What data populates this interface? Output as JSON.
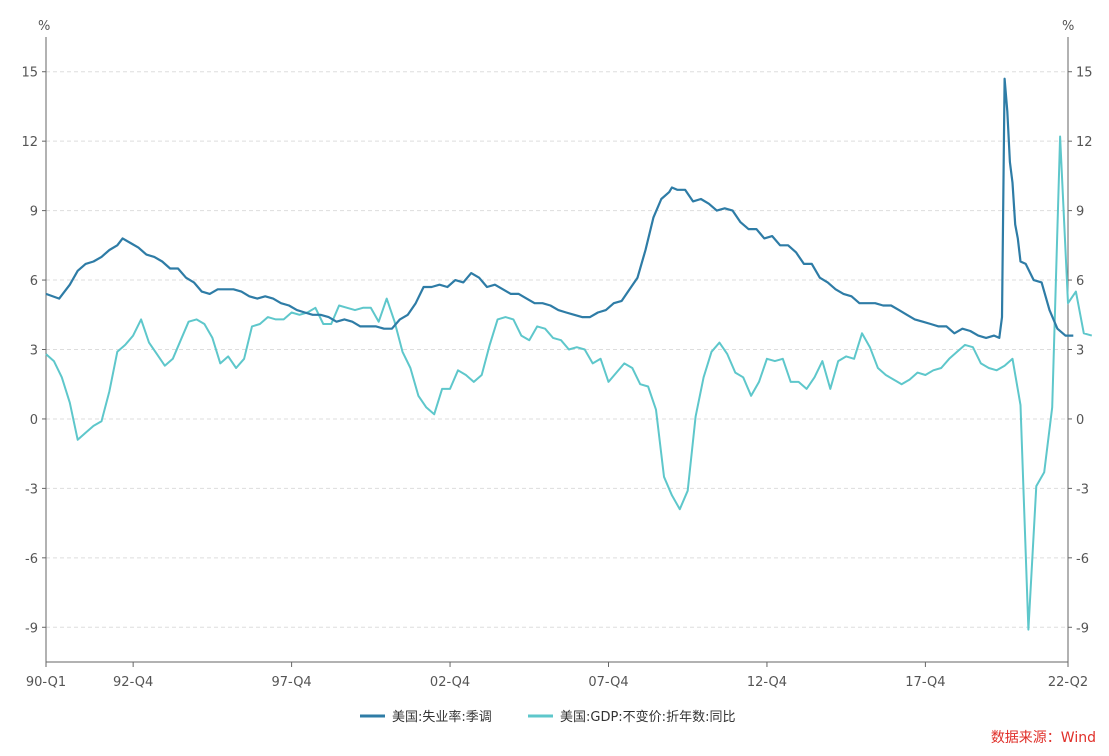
{
  "chart_data": {
    "type": "line",
    "left_unit": "%",
    "right_unit": "%",
    "ylim": [
      -10.5,
      16.5
    ],
    "yticks": [
      15,
      12,
      9,
      6,
      3,
      0,
      -3,
      -6,
      -9
    ],
    "x_start_year": 1990,
    "x_end": "2022-Q2",
    "xtick_labels": [
      "90-Q1",
      "92-Q4",
      "97-Q4",
      "02-Q4",
      "07-Q4",
      "12-Q4",
      "17-Q4",
      "22-Q2"
    ],
    "xtick_positions": [
      "1990-Q1",
      "1992-Q4",
      "1997-Q4",
      "2002-Q4",
      "2007-Q4",
      "2012-Q4",
      "2017-Q4",
      "2022-Q2"
    ],
    "grid": true,
    "legend_position": "bottom",
    "source_text": "数据来源：Wind",
    "colors": {
      "unemployment": "#2e7ca6",
      "gdp": "#5ec7cb",
      "source": "#e0302a",
      "grid": "#dddddd"
    },
    "series": [
      {
        "name": "美国:失业率:季调",
        "color": "#2e7ca6",
        "points": [
          [
            "1990-01",
            5.4
          ],
          [
            "1990-06",
            5.2
          ],
          [
            "1990-10",
            5.8
          ],
          [
            "1991-01",
            6.4
          ],
          [
            "1991-04",
            6.7
          ],
          [
            "1991-07",
            6.8
          ],
          [
            "1991-10",
            7.0
          ],
          [
            "1992-01",
            7.3
          ],
          [
            "1992-04",
            7.5
          ],
          [
            "1992-06",
            7.8
          ],
          [
            "1992-09",
            7.6
          ],
          [
            "1992-12",
            7.4
          ],
          [
            "1993-03",
            7.1
          ],
          [
            "1993-06",
            7.0
          ],
          [
            "1993-09",
            6.8
          ],
          [
            "1993-12",
            6.5
          ],
          [
            "1994-03",
            6.5
          ],
          [
            "1994-06",
            6.1
          ],
          [
            "1994-09",
            5.9
          ],
          [
            "1994-12",
            5.5
          ],
          [
            "1995-03",
            5.4
          ],
          [
            "1995-06",
            5.6
          ],
          [
            "1995-09",
            5.6
          ],
          [
            "1995-12",
            5.6
          ],
          [
            "1996-03",
            5.5
          ],
          [
            "1996-06",
            5.3
          ],
          [
            "1996-09",
            5.2
          ],
          [
            "1996-12",
            5.3
          ],
          [
            "1997-03",
            5.2
          ],
          [
            "1997-06",
            5.0
          ],
          [
            "1997-09",
            4.9
          ],
          [
            "1997-12",
            4.7
          ],
          [
            "1998-03",
            4.6
          ],
          [
            "1998-06",
            4.5
          ],
          [
            "1998-09",
            4.5
          ],
          [
            "1998-12",
            4.4
          ],
          [
            "1999-03",
            4.2
          ],
          [
            "1999-06",
            4.3
          ],
          [
            "1999-09",
            4.2
          ],
          [
            "1999-12",
            4.0
          ],
          [
            "2000-03",
            4.0
          ],
          [
            "2000-06",
            4.0
          ],
          [
            "2000-09",
            3.9
          ],
          [
            "2000-12",
            3.9
          ],
          [
            "2001-03",
            4.3
          ],
          [
            "2001-06",
            4.5
          ],
          [
            "2001-09",
            5.0
          ],
          [
            "2001-12",
            5.7
          ],
          [
            "2002-03",
            5.7
          ],
          [
            "2002-06",
            5.8
          ],
          [
            "2002-09",
            5.7
          ],
          [
            "2002-12",
            6.0
          ],
          [
            "2003-03",
            5.9
          ],
          [
            "2003-06",
            6.3
          ],
          [
            "2003-09",
            6.1
          ],
          [
            "2003-12",
            5.7
          ],
          [
            "2004-03",
            5.8
          ],
          [
            "2004-06",
            5.6
          ],
          [
            "2004-09",
            5.4
          ],
          [
            "2004-12",
            5.4
          ],
          [
            "2005-03",
            5.2
          ],
          [
            "2005-06",
            5.0
          ],
          [
            "2005-09",
            5.0
          ],
          [
            "2005-12",
            4.9
          ],
          [
            "2006-03",
            4.7
          ],
          [
            "2006-06",
            4.6
          ],
          [
            "2006-09",
            4.5
          ],
          [
            "2006-12",
            4.4
          ],
          [
            "2007-03",
            4.4
          ],
          [
            "2007-06",
            4.6
          ],
          [
            "2007-09",
            4.7
          ],
          [
            "2007-12",
            5.0
          ],
          [
            "2008-03",
            5.1
          ],
          [
            "2008-06",
            5.6
          ],
          [
            "2008-09",
            6.1
          ],
          [
            "2008-12",
            7.3
          ],
          [
            "2009-03",
            8.7
          ],
          [
            "2009-06",
            9.5
          ],
          [
            "2009-09",
            9.8
          ],
          [
            "2009-10",
            10.0
          ],
          [
            "2009-12",
            9.9
          ],
          [
            "2010-03",
            9.9
          ],
          [
            "2010-06",
            9.4
          ],
          [
            "2010-09",
            9.5
          ],
          [
            "2010-12",
            9.3
          ],
          [
            "2011-03",
            9.0
          ],
          [
            "2011-06",
            9.1
          ],
          [
            "2011-09",
            9.0
          ],
          [
            "2011-12",
            8.5
          ],
          [
            "2012-03",
            8.2
          ],
          [
            "2012-06",
            8.2
          ],
          [
            "2012-09",
            7.8
          ],
          [
            "2012-12",
            7.9
          ],
          [
            "2013-03",
            7.5
          ],
          [
            "2013-06",
            7.5
          ],
          [
            "2013-09",
            7.2
          ],
          [
            "2013-12",
            6.7
          ],
          [
            "2014-03",
            6.7
          ],
          [
            "2014-06",
            6.1
          ],
          [
            "2014-09",
            5.9
          ],
          [
            "2014-12",
            5.6
          ],
          [
            "2015-03",
            5.4
          ],
          [
            "2015-06",
            5.3
          ],
          [
            "2015-09",
            5.0
          ],
          [
            "2015-12",
            5.0
          ],
          [
            "2016-03",
            5.0
          ],
          [
            "2016-06",
            4.9
          ],
          [
            "2016-09",
            4.9
          ],
          [
            "2016-12",
            4.7
          ],
          [
            "2017-03",
            4.5
          ],
          [
            "2017-06",
            4.3
          ],
          [
            "2017-09",
            4.2
          ],
          [
            "2017-12",
            4.1
          ],
          [
            "2018-03",
            4.0
          ],
          [
            "2018-06",
            4.0
          ],
          [
            "2018-09",
            3.7
          ],
          [
            "2018-12",
            3.9
          ],
          [
            "2019-03",
            3.8
          ],
          [
            "2019-06",
            3.6
          ],
          [
            "2019-09",
            3.5
          ],
          [
            "2019-12",
            3.6
          ],
          [
            "2020-02",
            3.5
          ],
          [
            "2020-03",
            4.4
          ],
          [
            "2020-04",
            14.7
          ],
          [
            "2020-05",
            13.3
          ],
          [
            "2020-06",
            11.1
          ],
          [
            "2020-07",
            10.2
          ],
          [
            "2020-08",
            8.4
          ],
          [
            "2020-09",
            7.8
          ],
          [
            "2020-10",
            6.8
          ],
          [
            "2020-12",
            6.7
          ],
          [
            "2021-03",
            6.0
          ],
          [
            "2021-06",
            5.9
          ],
          [
            "2021-09",
            4.7
          ],
          [
            "2021-12",
            3.9
          ],
          [
            "2022-03",
            3.6
          ],
          [
            "2022-06",
            3.6
          ]
        ]
      },
      {
        "name": "美国:GDP:不变价:折年数:同比",
        "color": "#5ec7cb",
        "points": [
          [
            "1990-Q1",
            2.8
          ],
          [
            "1990-Q2",
            2.5
          ],
          [
            "1990-Q3",
            1.8
          ],
          [
            "1990-Q4",
            0.7
          ],
          [
            "1991-Q1",
            -0.9
          ],
          [
            "1991-Q2",
            -0.6
          ],
          [
            "1991-Q3",
            -0.3
          ],
          [
            "1991-Q4",
            -0.1
          ],
          [
            "1992-Q1",
            1.2
          ],
          [
            "1992-Q2",
            2.9
          ],
          [
            "1992-Q3",
            3.2
          ],
          [
            "1992-Q4",
            3.6
          ],
          [
            "1993-Q1",
            4.3
          ],
          [
            "1993-Q2",
            3.3
          ],
          [
            "1993-Q3",
            2.8
          ],
          [
            "1993-Q4",
            2.3
          ],
          [
            "1994-Q1",
            2.6
          ],
          [
            "1994-Q2",
            3.4
          ],
          [
            "1994-Q3",
            4.2
          ],
          [
            "1994-Q4",
            4.3
          ],
          [
            "1995-Q1",
            4.1
          ],
          [
            "1995-Q2",
            3.5
          ],
          [
            "1995-Q3",
            2.4
          ],
          [
            "1995-Q4",
            2.7
          ],
          [
            "1996-Q1",
            2.2
          ],
          [
            "1996-Q2",
            2.6
          ],
          [
            "1996-Q3",
            4.0
          ],
          [
            "1996-Q4",
            4.1
          ],
          [
            "1997-Q1",
            4.4
          ],
          [
            "1997-Q2",
            4.3
          ],
          [
            "1997-Q3",
            4.3
          ],
          [
            "1997-Q4",
            4.6
          ],
          [
            "1998-Q1",
            4.5
          ],
          [
            "1998-Q2",
            4.6
          ],
          [
            "1998-Q3",
            4.8
          ],
          [
            "1998-Q4",
            4.1
          ],
          [
            "1999-Q1",
            4.1
          ],
          [
            "1999-Q2",
            4.9
          ],
          [
            "1999-Q3",
            4.8
          ],
          [
            "1999-Q4",
            4.7
          ],
          [
            "2000-Q1",
            4.8
          ],
          [
            "2000-Q2",
            4.8
          ],
          [
            "2000-Q3",
            4.2
          ],
          [
            "2000-Q4",
            5.2
          ],
          [
            "2001-Q1",
            4.2
          ],
          [
            "2001-Q2",
            2.9
          ],
          [
            "2001-Q3",
            2.2
          ],
          [
            "2001-Q4",
            1.0
          ],
          [
            "2002-Q1",
            0.5
          ],
          [
            "2002-Q2",
            0.2
          ],
          [
            "2002-Q3",
            1.3
          ],
          [
            "2002-Q4",
            1.3
          ],
          [
            "2003-Q1",
            2.1
          ],
          [
            "2003-Q2",
            1.9
          ],
          [
            "2003-Q3",
            1.6
          ],
          [
            "2003-Q4",
            1.9
          ],
          [
            "2004-Q1",
            3.2
          ],
          [
            "2004-Q2",
            4.3
          ],
          [
            "2004-Q3",
            4.4
          ],
          [
            "2004-Q4",
            4.3
          ],
          [
            "2005-Q1",
            3.6
          ],
          [
            "2005-Q2",
            3.4
          ],
          [
            "2005-Q3",
            4.0
          ],
          [
            "2005-Q4",
            3.9
          ],
          [
            "2006-Q1",
            3.5
          ],
          [
            "2006-Q2",
            3.4
          ],
          [
            "2006-Q3",
            3.0
          ],
          [
            "2006-Q4",
            3.1
          ],
          [
            "2007-Q1",
            3.0
          ],
          [
            "2007-Q2",
            2.4
          ],
          [
            "2007-Q3",
            2.6
          ],
          [
            "2007-Q4",
            1.6
          ],
          [
            "2008-Q1",
            2.0
          ],
          [
            "2008-Q2",
            2.4
          ],
          [
            "2008-Q3",
            2.2
          ],
          [
            "2008-Q4",
            1.5
          ],
          [
            "2009-Q1",
            1.4
          ],
          [
            "2009-Q2",
            0.4
          ],
          [
            "2009-Q3",
            -2.5
          ],
          [
            "2009-Q4",
            -3.3
          ],
          [
            "2010-Q1",
            -3.9
          ],
          [
            "2010-Q2",
            -3.1
          ],
          [
            "2010-Q3",
            0.1
          ],
          [
            "2010-Q4",
            1.8
          ],
          [
            "2011-Q1",
            2.9
          ],
          [
            "2011-Q2",
            3.3
          ],
          [
            "2011-Q3",
            2.8
          ],
          [
            "2011-Q4",
            2.0
          ],
          [
            "2012-Q1",
            1.8
          ],
          [
            "2012-Q2",
            1.0
          ],
          [
            "2012-Q3",
            1.6
          ],
          [
            "2012-Q4",
            2.6
          ],
          [
            "2013-Q1",
            2.5
          ],
          [
            "2013-Q2",
            2.6
          ],
          [
            "2013-Q3",
            1.6
          ],
          [
            "2013-Q4",
            1.6
          ],
          [
            "2014-Q1",
            1.3
          ],
          [
            "2014-Q2",
            1.8
          ],
          [
            "2014-Q3",
            2.5
          ],
          [
            "2014-Q4",
            1.3
          ],
          [
            "2015-Q1",
            2.5
          ],
          [
            "2015-Q2",
            2.7
          ],
          [
            "2015-Q3",
            2.6
          ],
          [
            "2015-Q4",
            3.7
          ],
          [
            "2016-Q1",
            3.1
          ],
          [
            "2016-Q2",
            2.2
          ],
          [
            "2016-Q3",
            1.9
          ],
          [
            "2016-Q4",
            1.7
          ],
          [
            "2017-Q1",
            1.5
          ],
          [
            "2017-Q2",
            1.7
          ],
          [
            "2017-Q3",
            2.0
          ],
          [
            "2017-Q4",
            1.9
          ],
          [
            "2018-Q1",
            2.1
          ],
          [
            "2018-Q2",
            2.2
          ],
          [
            "2018-Q3",
            2.6
          ],
          [
            "2018-Q4",
            2.9
          ],
          [
            "2019-Q1",
            3.2
          ],
          [
            "2019-Q2",
            3.1
          ],
          [
            "2019-Q3",
            2.4
          ],
          [
            "2019-Q4",
            2.2
          ],
          [
            "2020-Q1",
            2.1
          ],
          [
            "2020-Q2",
            2.3
          ],
          [
            "2020-Q3",
            2.6
          ],
          [
            "2020-Q4",
            0.6
          ],
          [
            "2021-Q1",
            -9.1
          ],
          [
            "2021-Q2",
            -2.9
          ],
          [
            "2021-Q3",
            -2.3
          ],
          [
            "2021-Q4",
            0.5
          ],
          [
            "2022-Q1",
            12.2
          ],
          [
            "2022-Q2",
            5.0
          ],
          [
            "2022-Q3",
            5.5
          ],
          [
            "2022-Q4",
            3.7
          ],
          [
            "2023-Q1",
            3.6
          ]
        ]
      }
    ]
  }
}
